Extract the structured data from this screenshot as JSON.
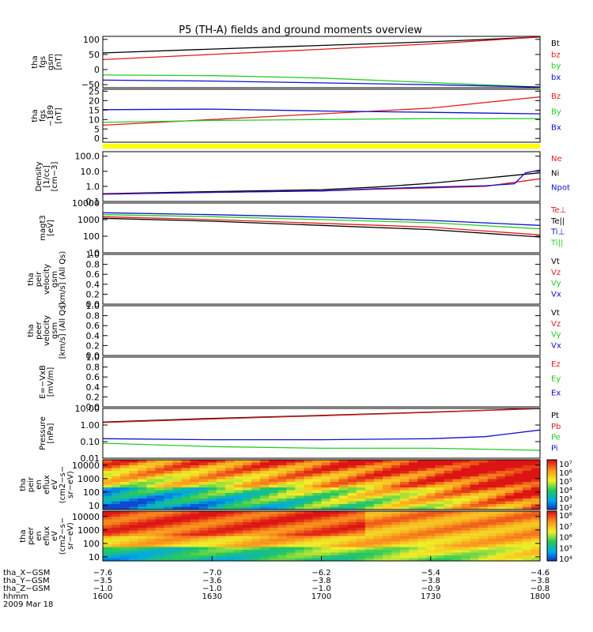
{
  "title": "P5 (TH-A) fields and ground moments overview",
  "colors": {
    "black": "#000000",
    "red": "#e31a1c",
    "green": "#22cc22",
    "blue": "#1010cc",
    "yellow": "#ffff00"
  },
  "chart_data": [
    {
      "id": "fgs",
      "type": "line",
      "ylabel": [
        "tha",
        "fgs",
        "gsm",
        "[nT]"
      ],
      "ylim": [
        -60,
        110
      ],
      "yticks": [
        "100",
        "50",
        "0",
        "−50"
      ],
      "ytickvals": [
        100,
        50,
        0,
        -50
      ],
      "legend": [
        {
          "name": "Bt",
          "color": "black"
        },
        {
          "name": "bz",
          "color": "red"
        },
        {
          "name": "by",
          "color": "green"
        },
        {
          "name": "bx",
          "color": "blue"
        }
      ],
      "series": [
        {
          "name": "Bt",
          "color": "black",
          "x": [
            1600,
            1630,
            1700,
            1730,
            1800
          ],
          "y": [
            55,
            68,
            80,
            92,
            108
          ]
        },
        {
          "name": "bz",
          "color": "red",
          "x": [
            1600,
            1630,
            1700,
            1730,
            1800
          ],
          "y": [
            33,
            50,
            67,
            85,
            108
          ]
        },
        {
          "name": "by",
          "color": "green",
          "x": [
            1600,
            1630,
            1700,
            1730,
            1800
          ],
          "y": [
            -18,
            -20,
            -28,
            -43,
            -58
          ]
        },
        {
          "name": "bx",
          "color": "blue",
          "x": [
            1600,
            1630,
            1700,
            1730,
            1800
          ],
          "y": [
            -35,
            -38,
            -44,
            -50,
            -58
          ]
        }
      ]
    },
    {
      "id": "fgs_dsl",
      "type": "line",
      "ylabel": [
        "tha",
        "fgs",
        "−189",
        "[nT]"
      ],
      "ylim": [
        -2,
        26
      ],
      "yticks": [
        "25",
        "20",
        "15",
        "10",
        "5",
        "0"
      ],
      "ytickvals": [
        25,
        20,
        15,
        10,
        5,
        0
      ],
      "legend": [
        {
          "name": "Bz",
          "color": "red"
        },
        {
          "name": "By",
          "color": "green"
        },
        {
          "name": "Bx",
          "color": "blue"
        }
      ],
      "series": [
        {
          "name": "Bz",
          "color": "red",
          "x": [
            1600,
            1615,
            1630,
            1700,
            1730,
            1800
          ],
          "y": [
            7,
            8.5,
            10,
            13,
            16,
            22
          ]
        },
        {
          "name": "By",
          "color": "green",
          "x": [
            1600,
            1630,
            1700,
            1730,
            1800
          ],
          "y": [
            8.5,
            9.5,
            10,
            10.5,
            10.5
          ]
        },
        {
          "name": "Bx",
          "color": "blue",
          "x": [
            1600,
            1630,
            1700,
            1730,
            1800
          ],
          "y": [
            15.2,
            15.5,
            14.5,
            13.8,
            13
          ]
        }
      ]
    },
    {
      "id": "flag",
      "type": "bar",
      "color": "yellow"
    },
    {
      "id": "density",
      "type": "line",
      "log": true,
      "ylabel": [
        "Density",
        "[1/cc]",
        "[cm−3]"
      ],
      "ylim": [
        0.1,
        200
      ],
      "yticks": [
        "100.0",
        "10.0",
        "1.0",
        "0.1"
      ],
      "ytickvals": [
        100,
        10,
        1,
        0.1
      ],
      "legend": [
        {
          "name": "Ne",
          "color": "red"
        },
        {
          "name": "Ni",
          "color": "black"
        },
        {
          "name": "Npot",
          "color": "blue"
        }
      ],
      "series": [
        {
          "name": "Ni",
          "color": "black",
          "x": [
            1600,
            1630,
            1700,
            1715,
            1730,
            1745,
            1800
          ],
          "y": [
            0.33,
            0.45,
            0.6,
            0.9,
            1.6,
            3.5,
            8
          ]
        },
        {
          "name": "Ne",
          "color": "red",
          "x": [
            1600,
            1630,
            1700,
            1715,
            1730,
            1745,
            1800
          ],
          "y": [
            0.32,
            0.4,
            0.5,
            0.65,
            0.8,
            1.0,
            3.2
          ]
        },
        {
          "name": "Npot",
          "color": "blue",
          "x": [
            1600,
            1630,
            1700,
            1715,
            1730,
            1745,
            1753,
            1756,
            1800
          ],
          "y": [
            0.3,
            0.4,
            0.5,
            0.7,
            0.9,
            1.1,
            1.5,
            8,
            12
          ]
        }
      ]
    },
    {
      "id": "temperature",
      "type": "line",
      "log": true,
      "ylabel": [
        "magt3",
        "[eV]"
      ],
      "ylim": [
        10,
        10000
      ],
      "yticks": [
        "10000",
        "1000",
        "100",
        "10"
      ],
      "ytickvals": [
        10000,
        1000,
        100,
        10
      ],
      "legend": [
        {
          "name": "Te⊥",
          "color": "red"
        },
        {
          "name": "Te||",
          "color": "black"
        },
        {
          "name": "Ti⊥",
          "color": "blue"
        },
        {
          "name": "Ti||",
          "color": "green"
        }
      ],
      "series": [
        {
          "name": "Ti⊥",
          "color": "blue",
          "x": [
            1600,
            1630,
            1700,
            1730,
            1800
          ],
          "y": [
            2600,
            2000,
            1400,
            900,
            450
          ]
        },
        {
          "name": "Ti||",
          "color": "green",
          "x": [
            1600,
            1630,
            1700,
            1730,
            1800
          ],
          "y": [
            2000,
            1500,
            1000,
            650,
            280
          ]
        },
        {
          "name": "Te⊥",
          "color": "red",
          "x": [
            1600,
            1630,
            1700,
            1730,
            1800
          ],
          "y": [
            1500,
            1000,
            600,
            350,
            120
          ]
        },
        {
          "name": "Te||",
          "color": "black",
          "x": [
            1600,
            1630,
            1700,
            1730,
            1800
          ],
          "y": [
            1200,
            800,
            450,
            250,
            90
          ]
        }
      ]
    },
    {
      "id": "peir_velocity",
      "type": "line",
      "ylabel": [
        "tha",
        "peir",
        "velocity",
        "gsm",
        "[km/s] (All Qs)"
      ],
      "ylim": [
        0,
        1
      ],
      "yticks": [
        "1.0",
        "0.8",
        "0.6",
        "0.4",
        "0.2",
        "0.0"
      ],
      "ytickvals": [
        1,
        0.8,
        0.6,
        0.4,
        0.2,
        0
      ],
      "legend": [
        {
          "name": "Vt",
          "color": "black"
        },
        {
          "name": "Vz",
          "color": "red"
        },
        {
          "name": "Vy",
          "color": "green"
        },
        {
          "name": "Vx",
          "color": "blue"
        }
      ],
      "series": []
    },
    {
      "id": "peer_velocity",
      "type": "line",
      "ylabel": [
        "tha",
        "peer",
        "velocity",
        "gsm",
        "[km/s] (All Qs)"
      ],
      "ylim": [
        0,
        1
      ],
      "yticks": [
        "1.0",
        "0.8",
        "0.6",
        "0.4",
        "0.2",
        "0.0"
      ],
      "ytickvals": [
        1,
        0.8,
        0.6,
        0.4,
        0.2,
        0
      ],
      "legend": [
        {
          "name": "Vt",
          "color": "black"
        },
        {
          "name": "Vz",
          "color": "red"
        },
        {
          "name": "Vy",
          "color": "green"
        },
        {
          "name": "Vx",
          "color": "blue"
        }
      ],
      "series": []
    },
    {
      "id": "efield",
      "type": "line",
      "ylabel": [
        "E=−VxB",
        "[mV/m]"
      ],
      "ylim": [
        0,
        1
      ],
      "yticks": [
        "1.0",
        "0.8",
        "0.6",
        "0.4",
        "0.2",
        "0.0"
      ],
      "ytickvals": [
        1,
        0.8,
        0.6,
        0.4,
        0.2,
        0
      ],
      "legend": [
        {
          "name": "Ez",
          "color": "red"
        },
        {
          "name": "Ey",
          "color": "green"
        },
        {
          "name": "Ex",
          "color": "blue"
        }
      ],
      "series": []
    },
    {
      "id": "pressure",
      "type": "line",
      "log": true,
      "ylabel": [
        "Pressure",
        "[nPa]"
      ],
      "ylim": [
        0.01,
        10
      ],
      "yticks": [
        "10.00",
        "1.00",
        "0.10",
        "0.01"
      ],
      "ytickvals": [
        10,
        1,
        0.1,
        0.01
      ],
      "legend": [
        {
          "name": "Pt",
          "color": "black"
        },
        {
          "name": "Pb",
          "color": "red"
        },
        {
          "name": "Pe",
          "color": "green"
        },
        {
          "name": "Pi",
          "color": "blue"
        }
      ],
      "series": [
        {
          "name": "Pt",
          "color": "black",
          "x": [
            1600,
            1630,
            1700,
            1730,
            1800
          ],
          "y": [
            1.5,
            2.5,
            3.8,
            6,
            10
          ]
        },
        {
          "name": "Pb",
          "color": "red",
          "x": [
            1600,
            1630,
            1700,
            1730,
            1800
          ],
          "y": [
            1.4,
            2.3,
            3.6,
            5.8,
            9.8
          ]
        },
        {
          "name": "Pi",
          "color": "blue",
          "x": [
            1600,
            1630,
            1700,
            1730,
            1745,
            1800
          ],
          "y": [
            0.15,
            0.13,
            0.13,
            0.15,
            0.2,
            0.5
          ]
        },
        {
          "name": "Pe",
          "color": "green",
          "x": [
            1600,
            1630,
            1700,
            1730,
            1800
          ],
          "y": [
            0.08,
            0.05,
            0.04,
            0.04,
            0.03
          ]
        }
      ]
    },
    {
      "id": "peir_spec",
      "type": "heatmap",
      "log": true,
      "ylabel": [
        "tha",
        "peir",
        "en",
        "eflux",
        "eV",
        "(cm2−s−",
        "sr−eV)"
      ],
      "ylim": [
        5,
        25000
      ],
      "yticks": [
        "10000",
        "1000",
        "100",
        "10"
      ],
      "ytickvals": [
        10000,
        1000,
        100,
        10
      ],
      "colorbar": [
        "10⁷",
        "10⁶",
        "10⁵",
        "10⁴",
        "10³",
        "10²"
      ]
    },
    {
      "id": "peer_spec",
      "type": "heatmap",
      "log": true,
      "ylabel": [
        "tha",
        "peer",
        "en",
        "eflux",
        "eV",
        "(cm2−s−",
        "sr−eV)"
      ],
      "ylim": [
        5,
        25000
      ],
      "yticks": [
        "10000",
        "1000",
        "100",
        "10"
      ],
      "ytickvals": [
        10000,
        1000,
        100,
        10
      ],
      "colorbar": [
        "10⁸",
        "10⁷",
        "10⁶",
        "10⁵",
        "10⁴"
      ]
    }
  ],
  "xaxis": {
    "ticks": [
      1600,
      1630,
      1700,
      1730,
      1800
    ],
    "rows": [
      {
        "label": "tha_X−GSM",
        "values": [
          "−7.6",
          "−7.0",
          "−6.2",
          "−5.4",
          "−4.6"
        ]
      },
      {
        "label": "tha_Y−GSM",
        "values": [
          "−3.5",
          "−3.6",
          "−3.8",
          "−3.8",
          "−3.8"
        ]
      },
      {
        "label": "tha_Z−GSM",
        "values": [
          "−1.0",
          "−1.0",
          "−1.0",
          "−0.9",
          "−0.8"
        ]
      },
      {
        "label": "hhmm",
        "values": [
          "1600",
          "1630",
          "1700",
          "1730",
          "1800"
        ]
      }
    ],
    "date": "2009 Mar 18"
  }
}
